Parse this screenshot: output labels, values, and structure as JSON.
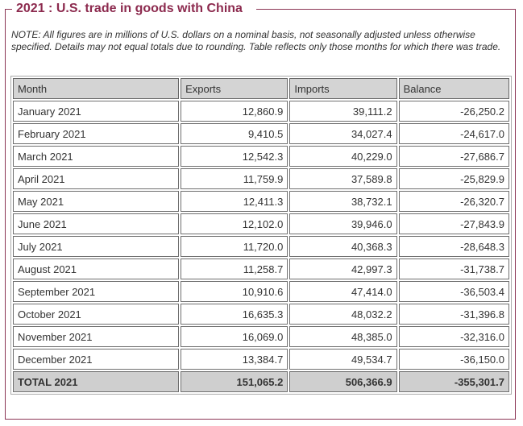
{
  "panel": {
    "title": "2021 : U.S. trade in goods with China",
    "note": "NOTE: All figures are in millions of U.S. dollars on a nominal basis, not seasonally adjusted unless otherwise specified. Details may not equal totals due to rounding. Table reflects only those months for which there was trade."
  },
  "table": {
    "headers": [
      "Month",
      "Exports",
      "Imports",
      "Balance"
    ],
    "rows": [
      [
        "January 2021",
        "12,860.9",
        "39,111.2",
        "-26,250.2"
      ],
      [
        "February 2021",
        "9,410.5",
        "34,027.4",
        "-24,617.0"
      ],
      [
        "March 2021",
        "12,542.3",
        "40,229.0",
        "-27,686.7"
      ],
      [
        "April 2021",
        "11,759.9",
        "37,589.8",
        "-25,829.9"
      ],
      [
        "May 2021",
        "12,411.3",
        "38,732.1",
        "-26,320.7"
      ],
      [
        "June 2021",
        "12,102.0",
        "39,946.0",
        "-27,843.9"
      ],
      [
        "July 2021",
        "11,720.0",
        "40,368.3",
        "-28,648.3"
      ],
      [
        "August 2021",
        "11,258.7",
        "42,997.3",
        "-31,738.7"
      ],
      [
        "September 2021",
        "10,910.6",
        "47,414.0",
        "-36,503.4"
      ],
      [
        "October 2021",
        "16,635.3",
        "48,032.2",
        "-31,396.8"
      ],
      [
        "November 2021",
        "16,069.0",
        "48,385.0",
        "-32,316.0"
      ],
      [
        "December 2021",
        "13,384.7",
        "49,534.7",
        "-36,150.0"
      ]
    ],
    "total": [
      "TOTAL 2021",
      "151,065.2",
      "506,366.9",
      "-355,301.7"
    ]
  }
}
